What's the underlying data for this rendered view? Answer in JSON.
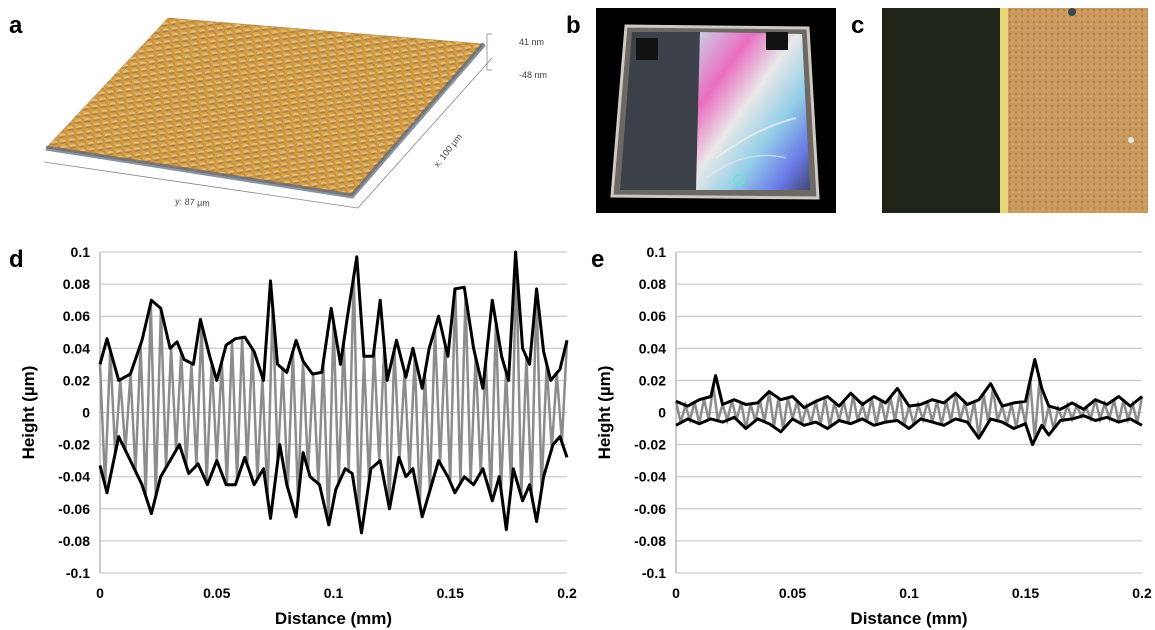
{
  "panels": {
    "a": {
      "letter": "a",
      "scale_top": "41 nm",
      "scale_bottom": "-48 nm",
      "x_axis": "x: 100 µm",
      "y_axis": "y: 87 µm"
    },
    "b": {
      "letter": "b"
    },
    "c": {
      "letter": "c"
    },
    "d": {
      "letter": "d"
    },
    "e": {
      "letter": "e"
    }
  },
  "colors": {
    "trace": "#8c8c8c",
    "envelope": "#000000",
    "grid": "#bfbfbf",
    "afm_peak": "#d9a24a",
    "afm_valley": "#6e7b8c"
  },
  "chart_data": [
    {
      "panel": "d",
      "type": "line",
      "xlabel": "Distance (mm)",
      "ylabel": "Height (µm)",
      "xlim": [
        0,
        0.2
      ],
      "ylim": [
        -0.1,
        0.1
      ],
      "xticks": [
        "0",
        "0.05",
        "0.1",
        "0.15",
        "0.2"
      ],
      "yticks": [
        "0.1",
        "0.08",
        "0.06",
        "0.04",
        "0.02",
        "0",
        "-0.02",
        "-0.04",
        "-0.06",
        "-0.08",
        "-0.1"
      ],
      "grid": true,
      "series": [
        {
          "role": "upper-envelope",
          "x": [
            0,
            0.003,
            0.008,
            0.013,
            0.018,
            0.022,
            0.026,
            0.03,
            0.033,
            0.036,
            0.04,
            0.043,
            0.047,
            0.05,
            0.054,
            0.058,
            0.062,
            0.066,
            0.07,
            0.073,
            0.076,
            0.08,
            0.084,
            0.087,
            0.091,
            0.095,
            0.099,
            0.103,
            0.106,
            0.11,
            0.113,
            0.117,
            0.12,
            0.123,
            0.127,
            0.131,
            0.134,
            0.138,
            0.141,
            0.145,
            0.149,
            0.152,
            0.156,
            0.16,
            0.164,
            0.168,
            0.172,
            0.175,
            0.178,
            0.181,
            0.184,
            0.187,
            0.19,
            0.193,
            0.197,
            0.2
          ],
          "y": [
            0.03,
            0.046,
            0.02,
            0.024,
            0.045,
            0.07,
            0.065,
            0.04,
            0.044,
            0.033,
            0.03,
            0.058,
            0.035,
            0.02,
            0.042,
            0.046,
            0.047,
            0.038,
            0.02,
            0.082,
            0.03,
            0.025,
            0.045,
            0.032,
            0.024,
            0.025,
            0.065,
            0.03,
            0.06,
            0.097,
            0.035,
            0.035,
            0.07,
            0.02,
            0.045,
            0.022,
            0.04,
            0.015,
            0.04,
            0.06,
            0.035,
            0.077,
            0.078,
            0.04,
            0.015,
            0.07,
            0.035,
            0.02,
            0.1,
            0.04,
            0.03,
            0.077,
            0.038,
            0.02,
            0.027,
            0.045
          ]
        },
        {
          "role": "lower-envelope",
          "x": [
            0,
            0.003,
            0.008,
            0.013,
            0.018,
            0.022,
            0.026,
            0.03,
            0.034,
            0.038,
            0.042,
            0.046,
            0.05,
            0.054,
            0.058,
            0.062,
            0.066,
            0.07,
            0.073,
            0.077,
            0.08,
            0.084,
            0.087,
            0.09,
            0.094,
            0.098,
            0.101,
            0.105,
            0.108,
            0.112,
            0.116,
            0.12,
            0.124,
            0.128,
            0.131,
            0.134,
            0.138,
            0.142,
            0.145,
            0.149,
            0.152,
            0.156,
            0.16,
            0.164,
            0.168,
            0.171,
            0.174,
            0.177,
            0.181,
            0.184,
            0.187,
            0.19,
            0.194,
            0.197,
            0.2
          ],
          "y": [
            -0.033,
            -0.05,
            -0.015,
            -0.03,
            -0.045,
            -0.063,
            -0.04,
            -0.03,
            -0.02,
            -0.038,
            -0.032,
            -0.045,
            -0.03,
            -0.045,
            -0.045,
            -0.028,
            -0.045,
            -0.035,
            -0.066,
            -0.02,
            -0.045,
            -0.065,
            -0.025,
            -0.04,
            -0.045,
            -0.07,
            -0.048,
            -0.035,
            -0.038,
            -0.075,
            -0.035,
            -0.03,
            -0.06,
            -0.028,
            -0.04,
            -0.035,
            -0.065,
            -0.045,
            -0.03,
            -0.04,
            -0.05,
            -0.04,
            -0.045,
            -0.035,
            -0.055,
            -0.04,
            -0.073,
            -0.035,
            -0.055,
            -0.045,
            -0.068,
            -0.04,
            -0.02,
            -0.015,
            -0.028
          ]
        }
      ]
    },
    {
      "panel": "e",
      "type": "line",
      "xlabel": "Distance (mm)",
      "ylabel": "Height (µm)",
      "xlim": [
        0,
        0.2
      ],
      "ylim": [
        -0.1,
        0.1
      ],
      "xticks": [
        "0",
        "0.05",
        "0.1",
        "0.15",
        "0.2"
      ],
      "yticks": [
        "0.1",
        "0.08",
        "0.06",
        "0.04",
        "0.02",
        "0",
        "-0.02",
        "-0.04",
        "-0.06",
        "-0.08",
        "-0.1"
      ],
      "grid": true,
      "series": [
        {
          "role": "upper-envelope",
          "x": [
            0,
            0.005,
            0.01,
            0.015,
            0.017,
            0.02,
            0.025,
            0.03,
            0.035,
            0.04,
            0.045,
            0.05,
            0.055,
            0.06,
            0.065,
            0.07,
            0.075,
            0.08,
            0.085,
            0.09,
            0.095,
            0.1,
            0.105,
            0.11,
            0.115,
            0.12,
            0.125,
            0.13,
            0.135,
            0.14,
            0.145,
            0.15,
            0.154,
            0.157,
            0.16,
            0.165,
            0.17,
            0.175,
            0.18,
            0.185,
            0.19,
            0.195,
            0.2
          ],
          "y": [
            0.007,
            0.004,
            0.008,
            0.01,
            0.023,
            0.005,
            0.008,
            0.005,
            0.006,
            0.013,
            0.008,
            0.01,
            0.003,
            0.007,
            0.01,
            0.004,
            0.012,
            0.005,
            0.01,
            0.006,
            0.015,
            0.004,
            0.005,
            0.008,
            0.006,
            0.012,
            0.005,
            0.008,
            0.018,
            0.004,
            0.006,
            0.007,
            0.033,
            0.015,
            0.004,
            0.002,
            0.006,
            0.002,
            0.008,
            0.005,
            0.01,
            0.004,
            0.01
          ]
        },
        {
          "role": "lower-envelope",
          "x": [
            0,
            0.005,
            0.01,
            0.015,
            0.02,
            0.025,
            0.03,
            0.035,
            0.04,
            0.045,
            0.05,
            0.055,
            0.06,
            0.065,
            0.07,
            0.075,
            0.08,
            0.085,
            0.09,
            0.095,
            0.1,
            0.105,
            0.11,
            0.115,
            0.12,
            0.125,
            0.13,
            0.135,
            0.14,
            0.145,
            0.15,
            0.153,
            0.157,
            0.16,
            0.165,
            0.17,
            0.175,
            0.18,
            0.185,
            0.19,
            0.195,
            0.2
          ],
          "y": [
            -0.008,
            -0.004,
            -0.007,
            -0.004,
            -0.006,
            -0.003,
            -0.01,
            -0.004,
            -0.007,
            -0.012,
            -0.004,
            -0.008,
            -0.006,
            -0.01,
            -0.005,
            -0.007,
            -0.004,
            -0.008,
            -0.006,
            -0.005,
            -0.01,
            -0.004,
            -0.006,
            -0.008,
            -0.004,
            -0.006,
            -0.016,
            -0.004,
            -0.006,
            -0.01,
            -0.007,
            -0.02,
            -0.008,
            -0.014,
            -0.005,
            -0.004,
            -0.002,
            -0.005,
            -0.003,
            -0.006,
            -0.004,
            -0.008
          ]
        }
      ]
    }
  ]
}
